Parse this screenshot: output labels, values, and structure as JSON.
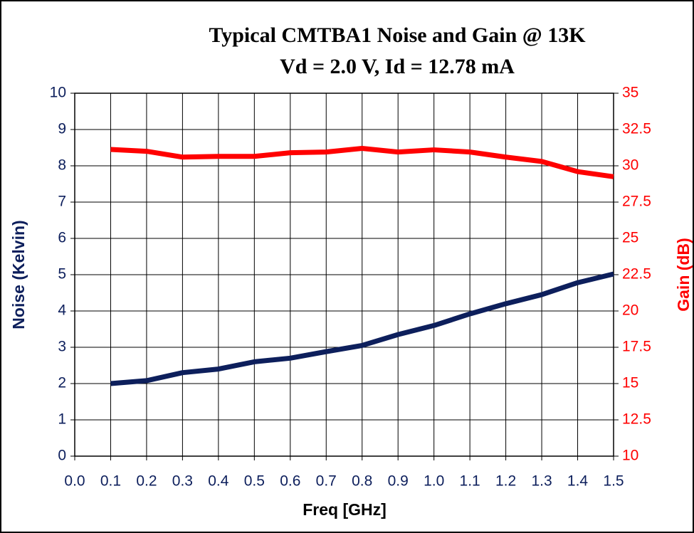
{
  "chart_data": {
    "type": "line",
    "title": "Typical CMTBA1 Noise and Gain @ 13K",
    "subtitle": "Vd = 2.0 V, Id = 12.78 mA",
    "xlabel": "Freq [GHz]",
    "ylabel": "Noise (Kelvin)",
    "y2label": "Gain (dB)",
    "x": [
      0.1,
      0.2,
      0.3,
      0.4,
      0.5,
      0.6,
      0.7,
      0.8,
      0.9,
      1.0,
      1.1,
      1.2,
      1.3,
      1.4,
      1.5
    ],
    "series": [
      {
        "name": "Noise",
        "color": "#0d1f5c",
        "axis": "y",
        "values": [
          2.0,
          2.08,
          2.3,
          2.4,
          2.6,
          2.7,
          2.88,
          3.05,
          3.35,
          3.6,
          3.92,
          4.2,
          4.45,
          4.78,
          5.02
        ]
      },
      {
        "name": "Gain",
        "color": "#ff0000",
        "axis": "y2",
        "values": [
          31.13,
          31.0,
          30.6,
          30.65,
          30.65,
          30.9,
          30.95,
          31.2,
          30.95,
          31.1,
          30.95,
          30.6,
          30.3,
          29.6,
          29.25
        ]
      }
    ],
    "xlim": [
      0,
      1.5
    ],
    "xticks": [
      {
        "value": 0,
        "label": "0.0"
      },
      0.1,
      0.2,
      0.3,
      0.4,
      0.5,
      0.6,
      0.7,
      0.8,
      0.9,
      {
        "value": 1,
        "label": "1.0"
      },
      1.1,
      1.2,
      1.3,
      1.4,
      1.5
    ],
    "ylim": [
      0,
      10
    ],
    "yticks": [
      0,
      1,
      2,
      3,
      4,
      5,
      6,
      7,
      8,
      9,
      10
    ],
    "y2lim": [
      10,
      35
    ],
    "y2ticks": [
      10,
      12.5,
      15,
      17.5,
      20,
      22.5,
      25,
      27.5,
      30,
      32.5,
      35
    ],
    "grid": true
  }
}
